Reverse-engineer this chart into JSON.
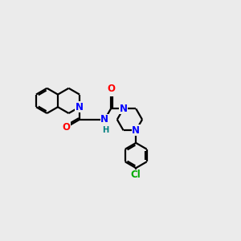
{
  "bg_color": "#ebebeb",
  "bond_color": "#000000",
  "N_color": "#0000ff",
  "O_color": "#ff0000",
  "Cl_color": "#00aa00",
  "NH_color": "#008080",
  "line_width": 1.6,
  "font_size": 8.5,
  "fig_size": [
    3.0,
    3.0
  ],
  "dpi": 100,
  "xlim": [
    0,
    10
  ],
  "ylim": [
    0,
    10
  ]
}
